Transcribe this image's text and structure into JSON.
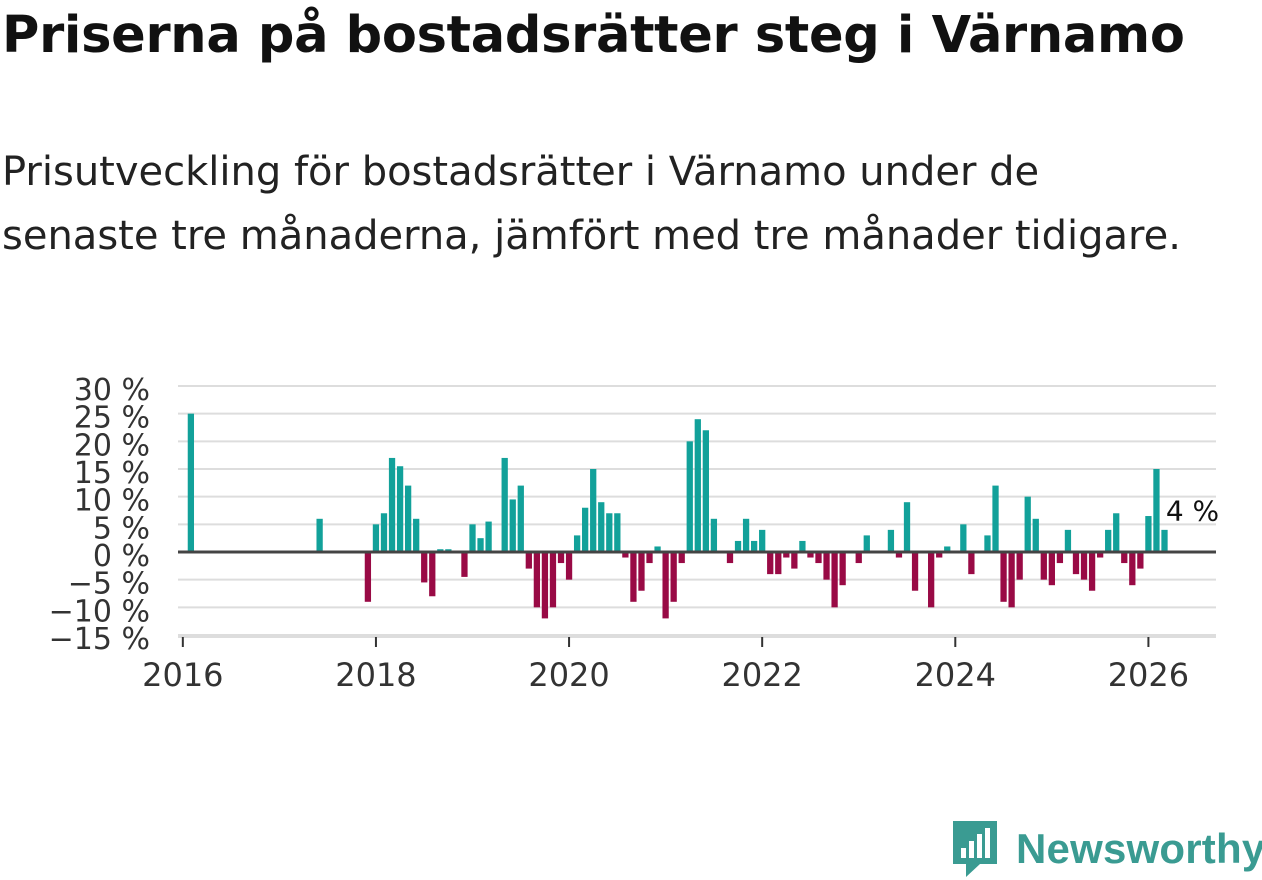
{
  "title": "Priserna på bostadsrätter steg i Värnamo",
  "subtitle": "Prisutveckling för bostadsrätter i Värnamo under de senaste tre månaderna, jämfört med tre månader tidigare.",
  "brand": {
    "name": "Newsworthy",
    "color": "#3a9b92",
    "icon": "newsworthy-logo-icon"
  },
  "colors": {
    "positive": "#12a19a",
    "negative": "#990a45",
    "grid": "#dddddd",
    "zero_line": "#444444",
    "text": "#333333"
  },
  "chart_data": {
    "type": "bar",
    "title": "Priserna på bostadsrätter steg i Värnamo",
    "xlabel": "",
    "ylabel": "",
    "ylim": [
      -15,
      30
    ],
    "xlim": [
      2015.95,
      2026.7
    ],
    "yticks": [
      30,
      25,
      20,
      15,
      10,
      5,
      0,
      -5,
      -10,
      -15
    ],
    "ytick_labels": [
      "30 %",
      "25 %",
      "20 %",
      "15 %",
      "10 %",
      "5 %",
      "0 %",
      "−5 %",
      "−10 %",
      "−15 %"
    ],
    "xticks": [
      2016,
      2018,
      2020,
      2022,
      2024,
      2026
    ],
    "xtick_labels": [
      "2016",
      "2018",
      "2020",
      "2022",
      "2024",
      "2026"
    ],
    "grid": true,
    "annotation": {
      "label": "4 %",
      "date": "2026-03",
      "value": 4
    },
    "series": [
      {
        "name": "Prisutveckling",
        "points": [
          {
            "date": "2016-02",
            "value": 25
          },
          {
            "date": "2017-06",
            "value": 6
          },
          {
            "date": "2017-12",
            "value": -9
          },
          {
            "date": "2018-01",
            "value": 5
          },
          {
            "date": "2018-02",
            "value": 7
          },
          {
            "date": "2018-03",
            "value": 17
          },
          {
            "date": "2018-04",
            "value": 15.5
          },
          {
            "date": "2018-05",
            "value": 12
          },
          {
            "date": "2018-06",
            "value": 6
          },
          {
            "date": "2018-07",
            "value": -5.5
          },
          {
            "date": "2018-08",
            "value": -8
          },
          {
            "date": "2018-09",
            "value": 0.5
          },
          {
            "date": "2018-10",
            "value": 0.5
          },
          {
            "date": "2018-12",
            "value": -4.5
          },
          {
            "date": "2019-01",
            "value": 5
          },
          {
            "date": "2019-02",
            "value": 2.5
          },
          {
            "date": "2019-03",
            "value": 5.5
          },
          {
            "date": "2019-05",
            "value": 17
          },
          {
            "date": "2019-06",
            "value": 9.5
          },
          {
            "date": "2019-07",
            "value": 12
          },
          {
            "date": "2019-08",
            "value": -3
          },
          {
            "date": "2019-09",
            "value": -10
          },
          {
            "date": "2019-10",
            "value": -12
          },
          {
            "date": "2019-11",
            "value": -10
          },
          {
            "date": "2019-12",
            "value": -2
          },
          {
            "date": "2020-01",
            "value": -5
          },
          {
            "date": "2020-02",
            "value": 3
          },
          {
            "date": "2020-03",
            "value": 8
          },
          {
            "date": "2020-04",
            "value": 15
          },
          {
            "date": "2020-05",
            "value": 9
          },
          {
            "date": "2020-06",
            "value": 7
          },
          {
            "date": "2020-07",
            "value": 7
          },
          {
            "date": "2020-08",
            "value": -1
          },
          {
            "date": "2020-09",
            "value": -9
          },
          {
            "date": "2020-10",
            "value": -7
          },
          {
            "date": "2020-11",
            "value": -2
          },
          {
            "date": "2020-12",
            "value": 1
          },
          {
            "date": "2021-01",
            "value": -12
          },
          {
            "date": "2021-02",
            "value": -9
          },
          {
            "date": "2021-03",
            "value": -2
          },
          {
            "date": "2021-04",
            "value": 20
          },
          {
            "date": "2021-05",
            "value": 24
          },
          {
            "date": "2021-06",
            "value": 22
          },
          {
            "date": "2021-07",
            "value": 6
          },
          {
            "date": "2021-09",
            "value": -2
          },
          {
            "date": "2021-10",
            "value": 2
          },
          {
            "date": "2021-11",
            "value": 6
          },
          {
            "date": "2021-12",
            "value": 2
          },
          {
            "date": "2022-01",
            "value": 4
          },
          {
            "date": "2022-02",
            "value": -4
          },
          {
            "date": "2022-03",
            "value": -4
          },
          {
            "date": "2022-04",
            "value": -1
          },
          {
            "date": "2022-05",
            "value": -3
          },
          {
            "date": "2022-06",
            "value": 2
          },
          {
            "date": "2022-07",
            "value": -1
          },
          {
            "date": "2022-08",
            "value": -2
          },
          {
            "date": "2022-09",
            "value": -5
          },
          {
            "date": "2022-10",
            "value": -10
          },
          {
            "date": "2022-11",
            "value": -6
          },
          {
            "date": "2023-01",
            "value": -2
          },
          {
            "date": "2023-02",
            "value": 3
          },
          {
            "date": "2023-05",
            "value": 4
          },
          {
            "date": "2023-06",
            "value": -1
          },
          {
            "date": "2023-07",
            "value": 9
          },
          {
            "date": "2023-08",
            "value": -7
          },
          {
            "date": "2023-10",
            "value": -10
          },
          {
            "date": "2023-11",
            "value": -1
          },
          {
            "date": "2023-12",
            "value": 1
          },
          {
            "date": "2024-02",
            "value": 5
          },
          {
            "date": "2024-03",
            "value": -4
          },
          {
            "date": "2024-05",
            "value": 3
          },
          {
            "date": "2024-06",
            "value": 12
          },
          {
            "date": "2024-07",
            "value": -9
          },
          {
            "date": "2024-08",
            "value": -10
          },
          {
            "date": "2024-09",
            "value": -5
          },
          {
            "date": "2024-10",
            "value": 10
          },
          {
            "date": "2024-11",
            "value": 6
          },
          {
            "date": "2024-12",
            "value": -5
          },
          {
            "date": "2025-01",
            "value": -6
          },
          {
            "date": "2025-02",
            "value": -2
          },
          {
            "date": "2025-03",
            "value": 4
          },
          {
            "date": "2025-04",
            "value": -4
          },
          {
            "date": "2025-05",
            "value": -5
          },
          {
            "date": "2025-06",
            "value": -7
          },
          {
            "date": "2025-07",
            "value": -1
          },
          {
            "date": "2025-08",
            "value": 4
          },
          {
            "date": "2025-09",
            "value": 7
          },
          {
            "date": "2025-10",
            "value": -2
          },
          {
            "date": "2025-11",
            "value": -6
          },
          {
            "date": "2025-12",
            "value": -3
          },
          {
            "date": "2026-01",
            "value": 6.5
          },
          {
            "date": "2026-02",
            "value": 15
          },
          {
            "date": "2026-03",
            "value": 4
          }
        ]
      }
    ]
  }
}
